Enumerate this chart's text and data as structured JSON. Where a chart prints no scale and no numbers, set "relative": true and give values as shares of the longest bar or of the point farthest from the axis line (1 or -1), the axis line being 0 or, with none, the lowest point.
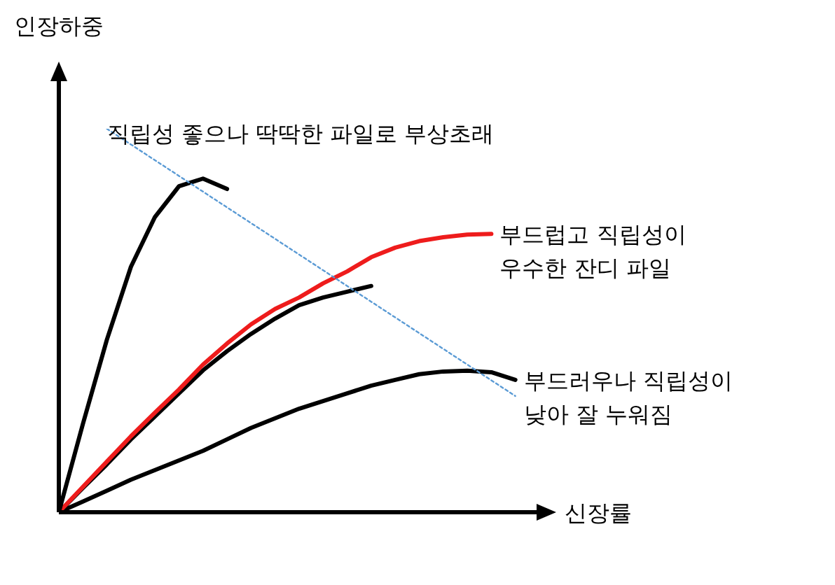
{
  "chart_data": {
    "type": "line",
    "relative": true,
    "xlabel": "신장률",
    "ylabel": "인장하중",
    "marker": "none",
    "legend": false,
    "categories": [
      null,
      null,
      null,
      null,
      null,
      null,
      null,
      null,
      null,
      null,
      null,
      null,
      null,
      null,
      null,
      null,
      null,
      null,
      null,
      null,
      null
    ],
    "series": [
      {
        "name": "직립성 좋으나 딱딱한 파일로 부상초래",
        "color": "#5b9bd5",
        "line_style": "dotted",
        "values": [
          null,
          null,
          1.0,
          0.959,
          0.918,
          0.877,
          0.836,
          0.795,
          0.754,
          0.713,
          0.672,
          0.631,
          0.59,
          0.549,
          0.508,
          0.467,
          0.426,
          0.385,
          0.344,
          0.303,
          null
        ]
      },
      {
        "color": "#000000",
        "values": [
          0,
          0.23,
          0.45,
          0.64,
          0.77,
          0.85,
          0.87,
          0.843,
          null,
          null,
          null,
          null,
          null,
          null,
          null,
          null,
          null,
          null,
          null,
          null,
          null
        ]
      },
      {
        "name": "부드럽고 직립성이\n우수한 잔디 파일",
        "color": "#ee1c1c",
        "values": [
          0,
          0.066,
          0.132,
          0.198,
          0.26,
          0.32,
          0.385,
          0.44,
          0.49,
          0.53,
          0.56,
          0.597,
          0.628,
          0.665,
          0.69,
          0.707,
          0.717,
          0.724,
          0.726,
          null,
          null
        ]
      },
      {
        "color": "#000000",
        "values": [
          0,
          0.063,
          0.125,
          0.19,
          0.25,
          0.31,
          0.37,
          0.42,
          0.465,
          0.505,
          0.54,
          0.56,
          0.575,
          0.59,
          null,
          null,
          null,
          null,
          null,
          null,
          null
        ]
      },
      {
        "name": "부드러우나 직립성이\n낮아 잘 누워짐",
        "color": "#000000",
        "values": [
          0,
          0.028,
          0.056,
          0.085,
          0.11,
          0.135,
          0.16,
          0.19,
          0.22,
          0.245,
          0.27,
          0.29,
          0.31,
          0.33,
          0.345,
          0.36,
          0.367,
          0.369,
          0.365,
          0.345,
          null
        ]
      }
    ]
  }
}
